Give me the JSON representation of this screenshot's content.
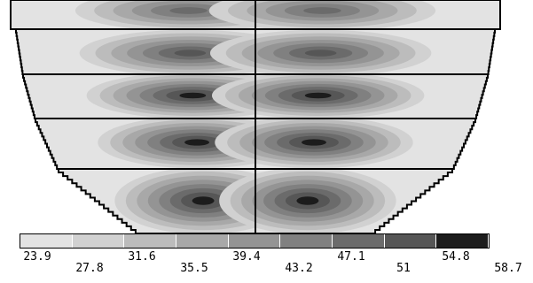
{
  "legend": {
    "values": [
      "23.9",
      "27.8",
      "31.6",
      "35.5",
      "39.4",
      "43.2",
      "47.1",
      "51",
      "54.8",
      "58.7"
    ],
    "colors": [
      "#e3e3e3",
      "#d1d1d1",
      "#bcbcbc",
      "#a8a8a8",
      "#949494",
      "#808080",
      "#6b6b6b",
      "#565656",
      "#1c1c1c"
    ]
  },
  "map": {
    "outline_color": "#000000",
    "background_color": "#ffffff",
    "levels": [
      {
        "extent": "full",
        "peak_level": 6
      },
      {
        "extent": "full",
        "peak_level": 7
      },
      {
        "extent": "full",
        "peak_level": 8
      },
      {
        "extent": "full",
        "peak_level": 8
      },
      {
        "extent": "full",
        "peak_level": 8
      }
    ]
  }
}
